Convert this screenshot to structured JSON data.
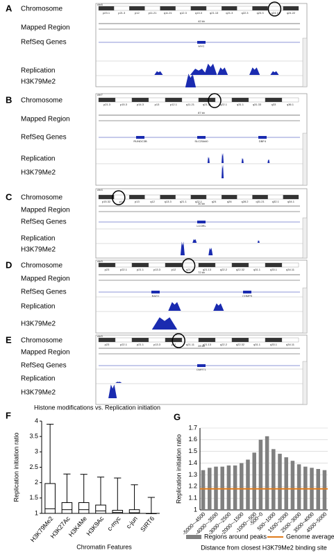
{
  "panels": [
    {
      "label": "A",
      "chrom": "chr8",
      "bands": [
        "p23.1",
        "p21.3",
        "p12",
        "p11.21",
        "q11.21",
        "q12.3",
        "q13.3",
        "q21.13",
        "q21.3",
        "q22.3",
        "q23.3",
        "q24.13",
        "q24.22"
      ],
      "scale": "42 kb",
      "genes": [
        "MYC"
      ],
      "tracks": [
        "Chromosome",
        "Mapped Region",
        "RefSeq Genes",
        "Replication",
        "H3K79Me2"
      ]
    },
    {
      "label": "B",
      "chrom": "chr7",
      "bands": [
        "p21.3",
        "p15.3",
        "p14.3",
        "p13",
        "p12.1",
        "q11.21",
        "q21.11",
        "q22.1",
        "q31.1",
        "q31.33",
        "q33",
        "q36.1"
      ],
      "scale": "87 kb",
      "genes": [
        "RUNDC3B",
        "SLC25A40",
        "DBF4"
      ],
      "tracks": [
        "Chromosome",
        "Mapped Region",
        "RefSeq Genes",
        "Replication",
        "H3K79Me2"
      ]
    },
    {
      "label": "C",
      "chrom": "chr4",
      "bands": [
        "p15.32",
        "p14",
        "p13",
        "q12",
        "q13.3",
        "q21.1",
        "q22.1",
        "q24",
        "q26",
        "q28.2",
        "q31.21",
        "q32.1",
        "q34.1"
      ],
      "scale": "30 kb",
      "genes": [
        "LCORL"
      ],
      "tracks": [
        "Chromosome",
        "Mapped Region",
        "RefSeq Genes",
        "Replication",
        "H3K79Me2"
      ]
    },
    {
      "label": "D",
      "chrom": "chr9",
      "bands": [
        "p23",
        "p22.1",
        "p21.1",
        "p13.3",
        "p12",
        "q21.11",
        "q21.13",
        "q22.2",
        "q22.32",
        "q31.1",
        "q33.1",
        "q34.11"
      ],
      "scale": "72 kb",
      "genes": [
        "BAG1",
        "CHMP5"
      ],
      "tracks": [
        "Chromosome",
        "Mapped Region",
        "RefSeq Genes",
        "Replication",
        "H3K79Me2"
      ]
    },
    {
      "label": "E",
      "chrom": "chr9",
      "bands": [
        "p23",
        "p22.1",
        "p21.1",
        "p13.3",
        "p12",
        "q21.11",
        "q21.13",
        "q22.2",
        "q22.32",
        "q31.1",
        "q33.1",
        "q34.11"
      ],
      "scale": "28 kb",
      "genes": [
        "DMRT1"
      ],
      "tracks": [
        "Chromosome",
        "Mapped Region",
        "RefSeq Genes",
        "Replication",
        "H3K79Me2"
      ]
    }
  ],
  "chart_data": [
    {
      "type": "box",
      "panel": "F",
      "title": "Histone modifications vs. Replication initiation",
      "ylabel": "Replication initiation ratio",
      "xlabel": "Chromatin Features",
      "categories": [
        "H3K79Me2",
        "H3K27Ac",
        "H3K4Me",
        "H3K9Ac",
        "c-myc",
        "c-jun",
        "SIRT6"
      ],
      "whislo": [
        1,
        1,
        1,
        1,
        1,
        1,
        1
      ],
      "q1": [
        1,
        1,
        1,
        1,
        1,
        1,
        1
      ],
      "median": [
        1.15,
        1.12,
        1.12,
        1.08,
        1.03,
        1.02,
        1.0
      ],
      "q3": [
        1.97,
        1.35,
        1.35,
        1.27,
        1.1,
        1.12,
        1.0
      ],
      "whishi": [
        3.9,
        2.28,
        2.27,
        2.18,
        2.15,
        1.93,
        1.52
      ],
      "ylim": [
        1,
        4
      ],
      "yticks": [
        1,
        1.5,
        2,
        2.5,
        3,
        3.5,
        4
      ],
      "color": "#000000"
    },
    {
      "type": "bar",
      "panel": "G",
      "ylabel": "Replication initiation ratio",
      "xlabel": "Distance from closest  H3K79Me2 binding site",
      "categories": [
        "-5000~-4500",
        null,
        "-4000~-3500",
        null,
        "-3000~-2500",
        null,
        "-2000~-1500",
        null,
        "-1000~-500",
        "-500~0",
        null,
        "500~1000",
        null,
        "1500~2000",
        null,
        "2500~3000",
        null,
        "3500~4000",
        null,
        "4500~5000"
      ],
      "series": [
        {
          "name": "Regions around peaks",
          "color": "#808080",
          "values": [
            1.34,
            1.36,
            1.37,
            1.37,
            1.38,
            1.38,
            1.4,
            1.43,
            1.49,
            1.6,
            1.63,
            1.52,
            1.48,
            1.45,
            1.42,
            1.39,
            1.37,
            1.36,
            1.35,
            1.34
          ]
        }
      ],
      "reference": {
        "name": "Genome average",
        "color": "#e07b1a",
        "value": 1.18
      },
      "ylim": [
        1,
        1.7
      ],
      "yticks": [
        1,
        1.1,
        1.2,
        1.3,
        1.4,
        1.5,
        1.6,
        1.7
      ],
      "grid": true
    }
  ]
}
